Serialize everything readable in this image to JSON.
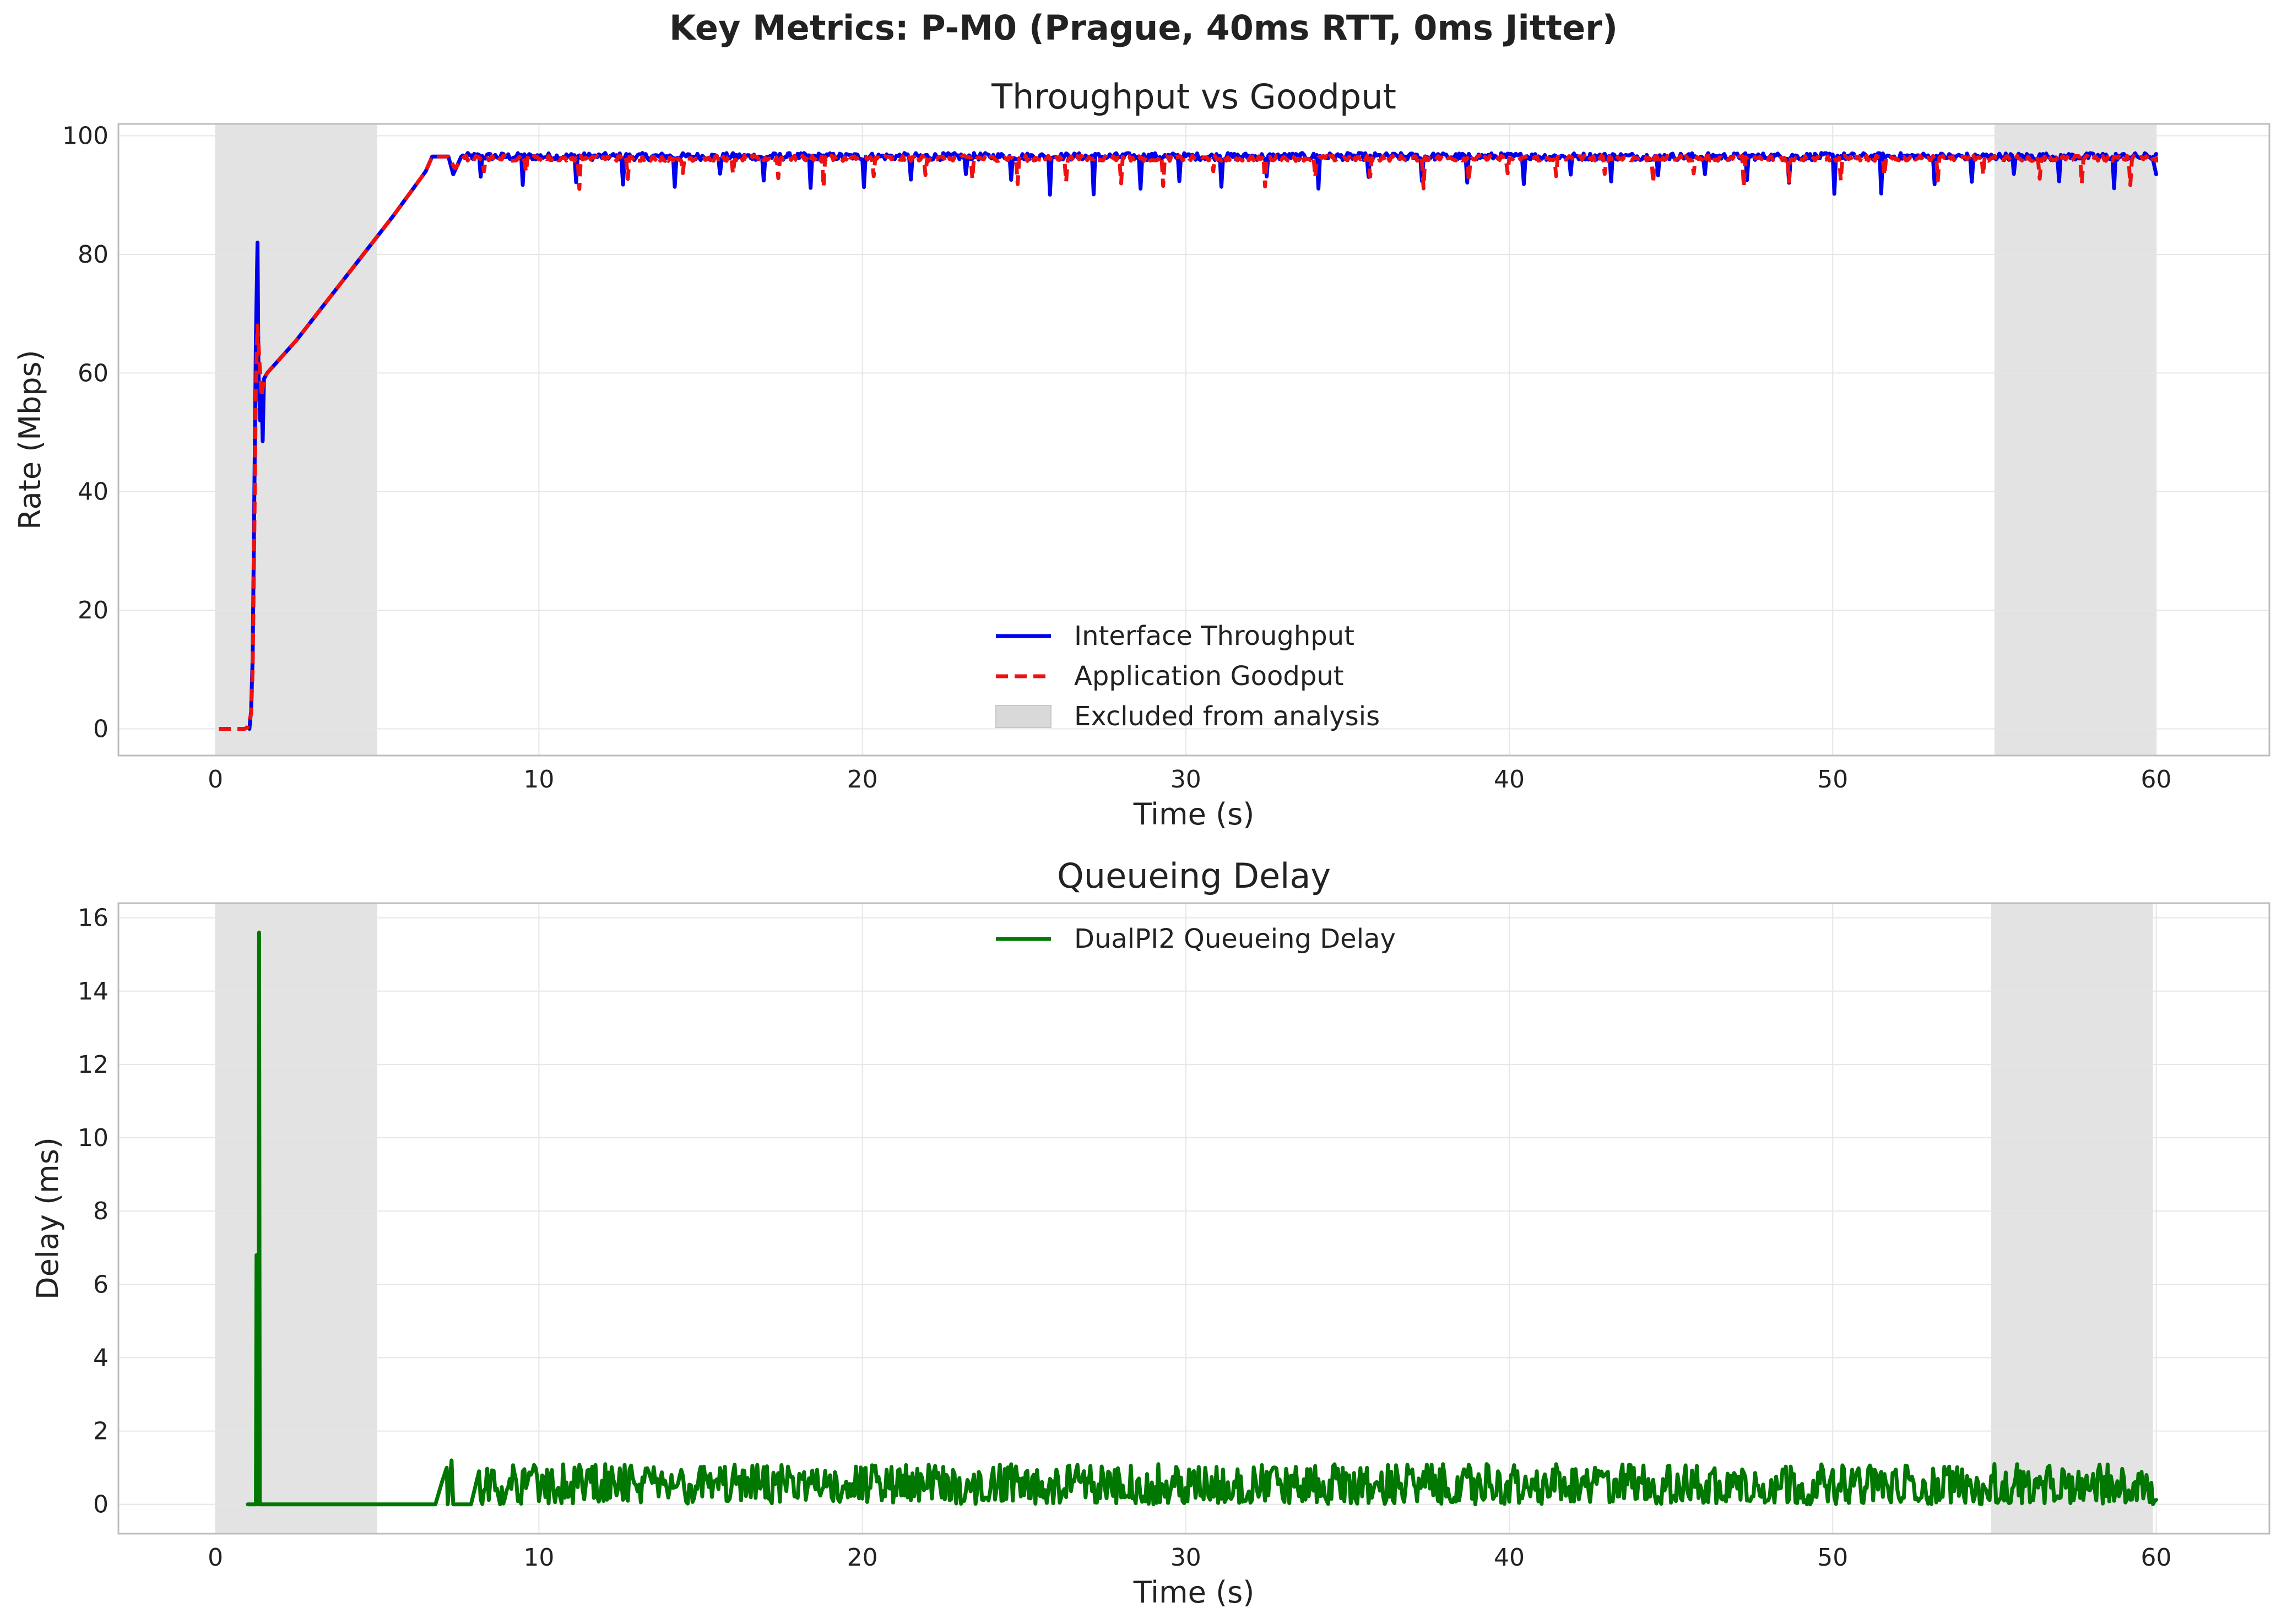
{
  "suptitle": "Key Metrics: P-M0 (Prague, 40ms RTT, 0ms Jitter)",
  "colors": {
    "throughput": "#0000ee",
    "goodput": "#ee1111",
    "delay": "#007700",
    "excluded": "#d9d9d9",
    "grid": "#e6e6e6",
    "frame": "#bdbdbd",
    "text": "#222222"
  },
  "chart_data": [
    {
      "type": "line",
      "title": "Throughput vs Goodput",
      "xlabel": "Time (s)",
      "ylabel": "Rate (Mbps)",
      "xlim": [
        -3,
        63.5
      ],
      "ylim": [
        -4.5,
        102
      ],
      "xticks": [
        0,
        10,
        20,
        30,
        40,
        50,
        60
      ],
      "yticks": [
        0,
        20,
        40,
        60,
        80,
        100
      ],
      "grid": true,
      "legend_position": "lower-center",
      "excluded_regions": [
        [
          0,
          5
        ],
        [
          55,
          60
        ]
      ],
      "legend": [
        "Interface Throughput",
        "Application Goodput",
        "Excluded from analysis"
      ],
      "series": [
        {
          "name": "Interface Throughput",
          "style": "solid",
          "points": [
            [
              1.05,
              0
            ],
            [
              1.1,
              3
            ],
            [
              1.15,
              12
            ],
            [
              1.2,
              38
            ],
            [
              1.25,
              66
            ],
            [
              1.3,
              82
            ],
            [
              1.33,
              60
            ],
            [
              1.38,
              52
            ],
            [
              1.42,
              58
            ],
            [
              1.46,
              48.5
            ],
            [
              1.5,
              59
            ],
            [
              1.6,
              60
            ],
            [
              2.5,
              65.5
            ],
            [
              3.5,
              72.5
            ],
            [
              4.5,
              79.5
            ],
            [
              5.5,
              86.5
            ],
            [
              6.5,
              94
            ],
            [
              6.7,
              96.5
            ],
            [
              7.2,
              96.5
            ],
            [
              7.35,
              93.5
            ],
            [
              7.6,
              96.5
            ]
          ],
          "steady": {
            "x_start": 7.6,
            "x_end": 60,
            "base": 96.5,
            "jitter": 1.2,
            "dip_every": 1.45,
            "dip_min": 90
          },
          "end": [
            [
              59.9,
              96
            ],
            [
              60,
              93.5
            ]
          ]
        },
        {
          "name": "Application Goodput",
          "style": "dashed",
          "points": [
            [
              0.1,
              0
            ],
            [
              0.9,
              0
            ],
            [
              1.0,
              0.3
            ],
            [
              1.1,
              2.5
            ],
            [
              1.15,
              10
            ],
            [
              1.2,
              32
            ],
            [
              1.25,
              58
            ],
            [
              1.3,
              68
            ],
            [
              1.36,
              62
            ],
            [
              1.42,
              56
            ],
            [
              1.5,
              59
            ],
            [
              1.6,
              60
            ],
            [
              2.5,
              65.5
            ],
            [
              3.5,
              72.5
            ],
            [
              4.5,
              79.5
            ],
            [
              5.5,
              86.5
            ],
            [
              6.5,
              94
            ],
            [
              6.7,
              96.5
            ],
            [
              7.2,
              96.5
            ],
            [
              7.4,
              94.5
            ],
            [
              7.7,
              96.5
            ]
          ],
          "steady": {
            "x_start": 7.7,
            "x_end": 60,
            "base": 96.2,
            "jitter": 0.9,
            "dip_every": 1.45,
            "dip_min": 91
          },
          "end": [
            [
              60,
              95.5
            ]
          ]
        }
      ]
    },
    {
      "type": "line",
      "title": "Queueing Delay",
      "xlabel": "Time (s)",
      "ylabel": "Delay (ms)",
      "xlim": [
        -3,
        63.5
      ],
      "ylim": [
        -0.8,
        16.4
      ],
      "xticks": [
        0,
        10,
        20,
        30,
        40,
        50,
        60
      ],
      "yticks": [
        0,
        2,
        4,
        6,
        8,
        10,
        12,
        14,
        16
      ],
      "grid": true,
      "legend_position": "upper-center",
      "excluded_regions": [
        [
          0,
          5
        ],
        [
          54.9,
          59.9
        ]
      ],
      "legend": [
        "DualPI2 Queueing Delay"
      ],
      "series": [
        {
          "name": "DualPI2 Queueing Delay",
          "style": "solid",
          "points": [
            [
              1.0,
              0
            ],
            [
              1.25,
              0
            ],
            [
              1.27,
              6.8
            ],
            [
              1.29,
              0
            ],
            [
              1.33,
              0
            ],
            [
              1.35,
              15.6
            ],
            [
              1.37,
              0
            ],
            [
              6.8,
              0
            ],
            [
              7.0,
              0.6
            ],
            [
              7.15,
              1.0
            ],
            [
              7.18,
              0
            ],
            [
              7.3,
              1.2
            ],
            [
              7.35,
              0
            ],
            [
              7.9,
              0
            ],
            [
              8.15,
              0.9
            ]
          ],
          "steady": {
            "x_start": 8.15,
            "x_end": 60,
            "base": 0.0,
            "jitter": 1.0,
            "dip_every": 0,
            "dip_min": 0
          }
        }
      ]
    }
  ]
}
